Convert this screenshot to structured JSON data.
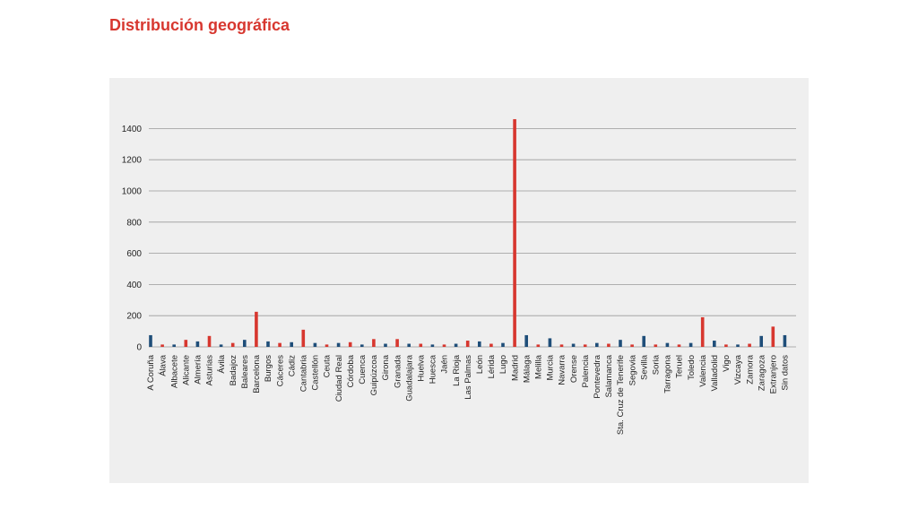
{
  "page": {
    "title": "Distribución geográfica"
  },
  "colors": {
    "title": "#d7372f",
    "red": "#d7372f",
    "blue": "#1f4e79",
    "grid": "#9a9a9a",
    "panel": "#efefef"
  },
  "chart_data": {
    "type": "bar",
    "title": "",
    "xlabel": "",
    "ylabel": "",
    "ylim": [
      0,
      1500
    ],
    "yticks": [
      0,
      200,
      400,
      600,
      800,
      1000,
      1200,
      1400
    ],
    "grid": true,
    "categories": [
      "A Coruña",
      "Álava",
      "Albacete",
      "Alicante",
      "Almería",
      "Asturias",
      "Ávila",
      "Badajoz",
      "Baleares",
      "Barcelona",
      "Burgos",
      "Cáceres",
      "Cádiz",
      "Cantabria",
      "Castellón",
      "Ceuta",
      "Ciudad Real",
      "Córdoba",
      "Cuenca",
      "Guipúzcoa",
      "Girona",
      "Granada",
      "Guadalajara",
      "Huelva",
      "Huesca",
      "Jaén",
      "La Rioja",
      "Las Palmas",
      "León",
      "Lérida",
      "Lugo",
      "Madrid",
      "Málaga",
      "Melilla",
      "Murcia",
      "Navarra",
      "Orense",
      "Palencia",
      "Pontevedra",
      "Salamanca",
      "Sta. Cruz de Tenerife",
      "Segovia",
      "Sevilla",
      "Soria",
      "Tarragona",
      "Teruel",
      "Toledo",
      "Valencia",
      "Valladolid",
      "Vigo",
      "Vizcaya",
      "Zamora",
      "Zaragoza",
      "Extranjero",
      "Sin datos"
    ],
    "values": [
      75,
      15,
      15,
      45,
      35,
      70,
      15,
      25,
      45,
      225,
      35,
      25,
      30,
      110,
      25,
      15,
      25,
      30,
      15,
      50,
      20,
      50,
      20,
      20,
      15,
      15,
      20,
      40,
      35,
      20,
      25,
      1460,
      75,
      15,
      55,
      15,
      20,
      15,
      25,
      20,
      45,
      15,
      70,
      15,
      25,
      15,
      25,
      190,
      40,
      15,
      15,
      20,
      70,
      130,
      75
    ],
    "bar_colors": [
      "blue",
      "red",
      "blue",
      "red",
      "blue",
      "red",
      "blue",
      "red",
      "blue",
      "red",
      "blue",
      "red",
      "blue",
      "red",
      "blue",
      "red",
      "blue",
      "red",
      "blue",
      "red",
      "blue",
      "red",
      "blue",
      "red",
      "blue",
      "red",
      "blue",
      "red",
      "blue",
      "red",
      "blue",
      "red",
      "blue",
      "red",
      "blue",
      "red",
      "blue",
      "red",
      "blue",
      "red",
      "blue",
      "red",
      "blue",
      "red",
      "blue",
      "red",
      "blue",
      "red",
      "blue",
      "red",
      "blue",
      "red",
      "blue",
      "red",
      "blue"
    ]
  }
}
